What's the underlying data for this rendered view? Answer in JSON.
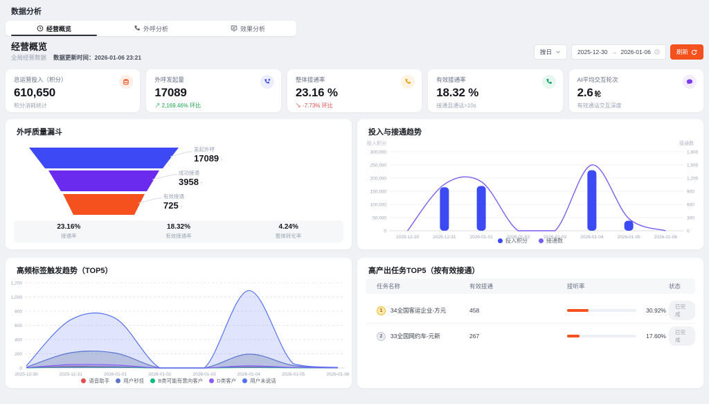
{
  "page_title": "数据分析",
  "tabs": [
    {
      "label": "经营概览",
      "icon": "clock-icon",
      "active": true
    },
    {
      "label": "外呼分析",
      "icon": "phone-icon",
      "active": false
    },
    {
      "label": "效果分析",
      "icon": "monitor-icon",
      "active": false
    }
  ],
  "section": {
    "title": "经营概览",
    "scope_label": "全局经营数据",
    "update_label": "数据更新时间：2026-01-06 23:21"
  },
  "controls": {
    "granularity": "按日",
    "date_start": "2025-12-30",
    "date_end": "2026-01-06",
    "refresh_label": "刷新"
  },
  "kpis": [
    {
      "title": "总运营投入（积分）",
      "value": "610,650",
      "unit": "",
      "sub": "积分消耗统计",
      "sub_kind": "muted",
      "icon": "coins-icon",
      "icon_color": "#f4511e",
      "icon_bg": "#fdeee7"
    },
    {
      "title": "外呼发起量",
      "value": "17089",
      "unit": "",
      "sub": "2,169.46% 环比",
      "sub_kind": "up",
      "icon": "phone-out-icon",
      "icon_color": "#4150f2",
      "icon_bg": "#eceefe"
    },
    {
      "title": "整体接通率",
      "value": "23.16 %",
      "unit": "",
      "sub": "-7.73% 环比",
      "sub_kind": "down",
      "icon": "phone-icon",
      "icon_color": "#f59e0b",
      "icon_bg": "#fdf4e4"
    },
    {
      "title": "有效接通率",
      "value": "18.32 %",
      "unit": "",
      "sub": "接通且通话>10s",
      "sub_kind": "muted",
      "icon": "phone-icon",
      "icon_color": "#12a262",
      "icon_bg": "#e7f6ee"
    },
    {
      "title": "AI平均交互轮次",
      "value": "2.6",
      "unit": "轮",
      "sub": "有效通话交互深度",
      "sub_kind": "muted",
      "icon": "chat-icon",
      "icon_color": "#7c3aed",
      "icon_bg": "#f2ecfd"
    }
  ],
  "funnel": {
    "title": "外呼质量漏斗",
    "stages": [
      {
        "label": "发起外呼",
        "value": "17089",
        "color": "#3c49f4"
      },
      {
        "label": "成功接通",
        "value": "3958",
        "color": "#6b2bee"
      },
      {
        "label": "有效接通",
        "value": "725",
        "color": "#f4511e"
      }
    ],
    "stats": [
      {
        "value": "23.16%",
        "label": "接通率"
      },
      {
        "value": "18.32%",
        "label": "有效接通率"
      },
      {
        "value": "4.24%",
        "label": "整体转化率"
      }
    ]
  },
  "chart_data": [
    {
      "type": "combo-bar-line",
      "title": "投入与接通趋势",
      "x": [
        "2025-12-30",
        "2025-12-31",
        "2026-01-01",
        "2026-01-02",
        "2026-01-03",
        "2026-01-04",
        "2026-01-05",
        "2026-01-06"
      ],
      "series": [
        {
          "name": "投入积分",
          "type": "bar",
          "axis": "left",
          "color": "#3b4af2",
          "values": [
            0,
            165000,
            170000,
            0,
            0,
            230000,
            38000,
            0
          ]
        },
        {
          "name": "接通数",
          "type": "line",
          "axis": "right",
          "color": "#7b5cf0",
          "values": [
            0,
            1060,
            1120,
            0,
            0,
            1500,
            280,
            0
          ]
        }
      ],
      "left_axis": {
        "label": "投入积分",
        "min": 0,
        "max": 300000,
        "step": 50000
      },
      "right_axis": {
        "label": "接通数",
        "min": 0,
        "max": 1800,
        "step": 300
      },
      "grid": "solid",
      "legend_position": "bottom"
    },
    {
      "type": "area",
      "title": "高频标签触发趋势（TOP5）",
      "x": [
        "2025-12-30",
        "2025-12-31",
        "2026-01-01",
        "2026-01-02",
        "2026-01-03",
        "2026-01-04",
        "2026-01-05",
        "2026-01-06"
      ],
      "series": [
        {
          "name": "语音助手",
          "color": "#e5484d",
          "fill": "rgba(229,72,77,0.22)",
          "values": [
            2,
            22,
            18,
            0,
            0,
            14,
            5,
            1
          ]
        },
        {
          "name": "用户秒挂",
          "color": "#5b76c8",
          "fill": "rgba(110,122,150,0.32)",
          "values": [
            10,
            215,
            210,
            0,
            0,
            195,
            35,
            4
          ]
        },
        {
          "name": "B类可能有意向客户",
          "color": "#10b981",
          "fill": "rgba(16,185,129,0.22)",
          "values": [
            1,
            12,
            10,
            0,
            0,
            7,
            2,
            0
          ]
        },
        {
          "name": "D类客户",
          "color": "#8b5cf6",
          "fill": "rgba(139,92,246,0.28)",
          "values": [
            4,
            48,
            42,
            0,
            0,
            30,
            8,
            2
          ]
        },
        {
          "name": "用户未说话",
          "color": "#5470f2",
          "fill": "rgba(84,112,242,0.18)",
          "values": [
            30,
            680,
            700,
            0,
            0,
            1090,
            60,
            8
          ]
        }
      ],
      "y_axis": {
        "min": 0,
        "max": 1200,
        "step": 200
      },
      "grid": "dashed",
      "legend_position": "bottom"
    }
  ],
  "table": {
    "title": "高产出任务TOP5（按有效接通）",
    "headers": [
      "任务名称",
      "有效接通",
      "接听率",
      "状态"
    ],
    "rows": [
      {
        "rank": 1,
        "name": "34全国客运企业-方元",
        "effective": "458",
        "rate_pct": 30.92,
        "rate_label": "30.92%",
        "status": "已完成"
      },
      {
        "rank": 2,
        "name": "33全国网约车-元新",
        "effective": "267",
        "rate_pct": 17.6,
        "rate_label": "17.60%",
        "status": "已完成"
      }
    ]
  },
  "colors": {
    "accent": "#f4511e",
    "positive": "#16a34a",
    "negative": "#e5484d",
    "bar_blue": "#3b4af2",
    "line_purple": "#7b5cf0"
  }
}
